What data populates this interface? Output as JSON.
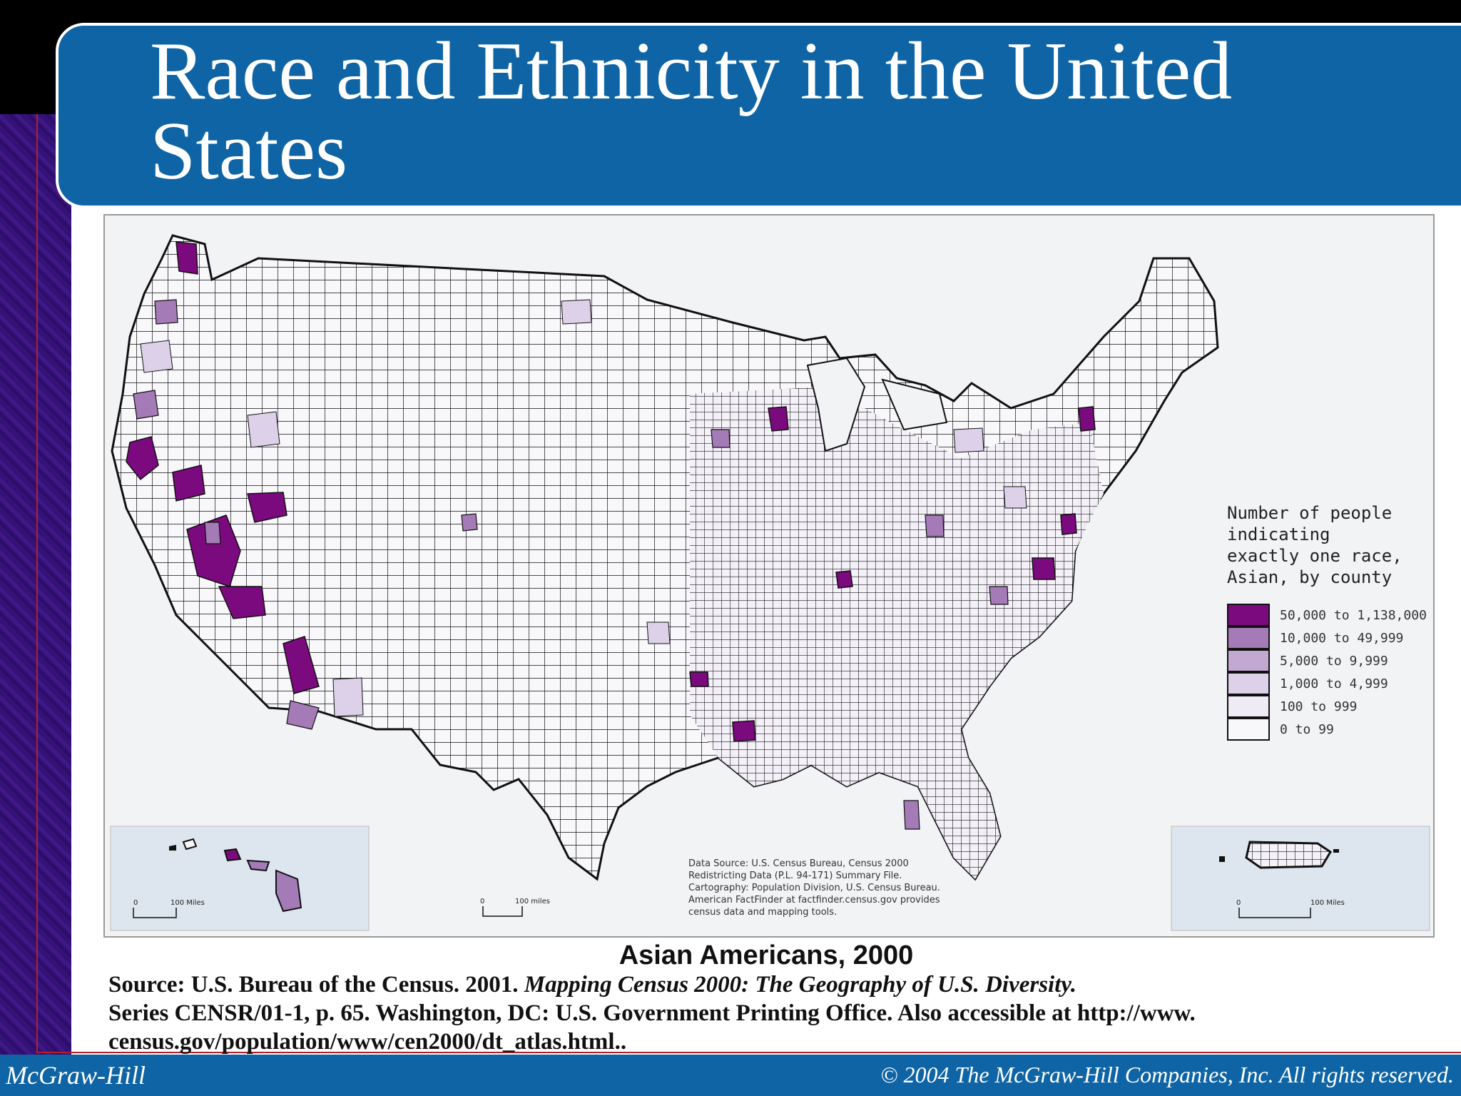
{
  "slide": {
    "title": "Race and Ethnicity in the United States",
    "caption": "Asian Americans, 2000",
    "source_line1_prefix": "Source: U.S. Bureau of the Census. 2001. ",
    "source_line1_italic": "Mapping Census 2000: The Geography of U.S. Diversity.",
    "source_line2": "Series CENSR/01-1, p. 65. Washington, DC: U.S. Government Printing Office. Also accessible at http://www.",
    "source_line3": "census.gov/population/www/cen2000/dt_atlas.html.."
  },
  "footer": {
    "publisher": "McGraw-Hill",
    "copyright": "© 2004 The McGraw-Hill Companies, Inc. All rights reserved."
  },
  "map": {
    "legend": {
      "title": "Number of people indicating exactly one race, Asian, by county",
      "items": [
        {
          "label": "50,000 to 1,138,000",
          "color": "#7b0a7e"
        },
        {
          "label": "10,000 to 49,999",
          "color": "#a47bb6"
        },
        {
          "label": "5,000 to 9,999",
          "color": "#c3a9d2"
        },
        {
          "label": "1,000 to 4,999",
          "color": "#dcd1e8"
        },
        {
          "label": "100 to 999",
          "color": "#efebf5"
        },
        {
          "label": "0 to 99",
          "color": "#f8f8fb"
        }
      ]
    },
    "data_source": [
      "Data Source: U.S. Census Bureau, Census 2000",
      "Redistricting Data (P.L. 94-171) Summary File.",
      "Cartography: Population Division, U.S. Census Bureau.",
      "American FactFinder at factfinder.census.gov provides",
      "census data and mapping tools."
    ],
    "scale_labels": {
      "hawaii": "100 Miles",
      "mainland": "100 miles",
      "puerto_rico": "100 Miles"
    }
  }
}
